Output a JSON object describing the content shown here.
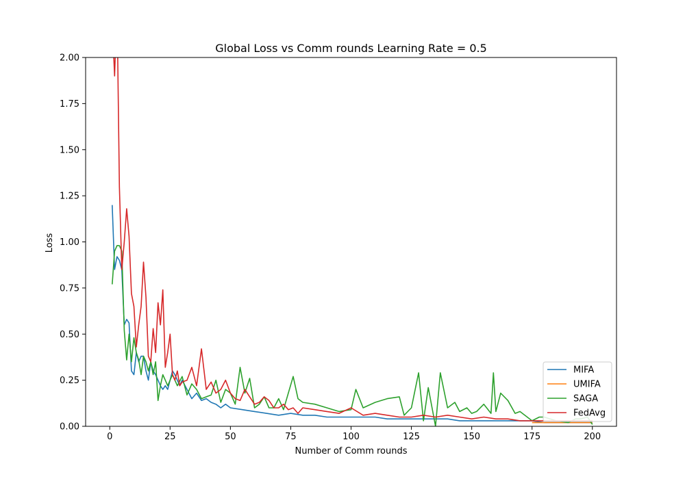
{
  "chart_data": {
    "type": "line",
    "title": "Global Loss vs Comm rounds Learning Rate = 0.5",
    "xlabel": "Number of Comm rounds",
    "ylabel": "Loss",
    "xlim": [
      -10,
      210
    ],
    "ylim": [
      0,
      2.0
    ],
    "xticks": [
      0,
      25,
      50,
      75,
      100,
      125,
      150,
      175,
      200
    ],
    "xtick_labels": [
      "0",
      "25",
      "50",
      "75",
      "100",
      "125",
      "150",
      "175",
      "200"
    ],
    "yticks": [
      0,
      0.25,
      0.5,
      0.75,
      1.0,
      1.25,
      1.5,
      1.75,
      2.0
    ],
    "ytick_labels": [
      "0.00",
      "0.25",
      "0.50",
      "0.75",
      "1.00",
      "1.25",
      "1.50",
      "1.75",
      "2.00"
    ],
    "legend_position": "lower-right",
    "grid": false,
    "series": [
      {
        "name": "MIFA",
        "color": "#1f77b4",
        "x": [
          1,
          2,
          3,
          4,
          5,
          6,
          7,
          8,
          9,
          10,
          11,
          12,
          13,
          14,
          15,
          16,
          17,
          18,
          19,
          20,
          21,
          22,
          23,
          24,
          25,
          26,
          27,
          28,
          29,
          30,
          32,
          34,
          36,
          38,
          40,
          42,
          44,
          46,
          48,
          50,
          55,
          60,
          65,
          70,
          75,
          80,
          85,
          90,
          95,
          100,
          105,
          110,
          115,
          120,
          125,
          130,
          135,
          140,
          145,
          150,
          155,
          160,
          165,
          170,
          175,
          180,
          185,
          190,
          195,
          200
        ],
        "y": [
          1.2,
          0.85,
          0.92,
          0.9,
          0.85,
          0.55,
          0.58,
          0.56,
          0.3,
          0.28,
          0.4,
          0.35,
          0.38,
          0.38,
          0.3,
          0.25,
          0.35,
          0.3,
          0.28,
          0.25,
          0.22,
          0.2,
          0.22,
          0.2,
          0.25,
          0.3,
          0.28,
          0.25,
          0.22,
          0.25,
          0.2,
          0.15,
          0.18,
          0.14,
          0.15,
          0.13,
          0.12,
          0.1,
          0.12,
          0.1,
          0.09,
          0.08,
          0.07,
          0.06,
          0.07,
          0.06,
          0.06,
          0.05,
          0.05,
          0.05,
          0.05,
          0.05,
          0.04,
          0.04,
          0.04,
          0.04,
          0.04,
          0.04,
          0.03,
          0.03,
          0.03,
          0.03,
          0.03,
          0.03,
          0.03,
          0.02,
          0.02,
          0.02,
          0.02,
          0.02
        ]
      },
      {
        "name": "UMIFA",
        "color": "#ff7f0e",
        "x": [
          175,
          180,
          185,
          190,
          195,
          200
        ],
        "y": [
          0.02,
          0.02,
          0.02,
          0.02,
          0.02,
          0.02
        ]
      },
      {
        "name": "SAGA",
        "color": "#2ca02c",
        "x": [
          1,
          2,
          3,
          4,
          5,
          6,
          7,
          8,
          9,
          10,
          11,
          12,
          13,
          14,
          15,
          16,
          17,
          18,
          19,
          20,
          21,
          22,
          23,
          24,
          25,
          26,
          28,
          30,
          32,
          34,
          36,
          38,
          40,
          42,
          44,
          46,
          48,
          50,
          52,
          54,
          56,
          58,
          60,
          62,
          64,
          66,
          68,
          70,
          72,
          74,
          76,
          78,
          80,
          85,
          90,
          95,
          100,
          102,
          105,
          110,
          115,
          120,
          122,
          125,
          128,
          130,
          132,
          135,
          137,
          140,
          143,
          145,
          148,
          150,
          152,
          155,
          158,
          159,
          160,
          162,
          165,
          168,
          170,
          172,
          175,
          178,
          180,
          185,
          190,
          193,
          195,
          198,
          200
        ],
        "y": [
          0.77,
          0.95,
          0.98,
          0.98,
          0.95,
          0.52,
          0.36,
          0.5,
          0.35,
          0.48,
          0.4,
          0.36,
          0.28,
          0.38,
          0.35,
          0.3,
          0.35,
          0.28,
          0.35,
          0.14,
          0.22,
          0.28,
          0.25,
          0.22,
          0.25,
          0.28,
          0.22,
          0.27,
          0.17,
          0.23,
          0.2,
          0.15,
          0.16,
          0.17,
          0.25,
          0.13,
          0.2,
          0.18,
          0.12,
          0.32,
          0.18,
          0.26,
          0.1,
          0.12,
          0.16,
          0.1,
          0.1,
          0.15,
          0.09,
          0.18,
          0.27,
          0.15,
          0.13,
          0.12,
          0.1,
          0.08,
          0.09,
          0.2,
          0.1,
          0.13,
          0.15,
          0.16,
          0.06,
          0.1,
          0.29,
          0.03,
          0.21,
          0.0,
          0.29,
          0.1,
          0.13,
          0.08,
          0.1,
          0.07,
          0.08,
          0.12,
          0.07,
          0.29,
          0.08,
          0.18,
          0.14,
          0.07,
          0.08,
          0.06,
          0.03,
          0.05,
          0.05,
          0.03,
          0.02,
          0.04,
          0.04,
          0.05,
          0.01
        ]
      },
      {
        "name": "FedAvg",
        "color": "#d62728",
        "x": [
          1,
          2,
          3,
          4,
          5,
          6,
          7,
          8,
          9,
          10,
          11,
          12,
          13,
          14,
          15,
          16,
          17,
          18,
          19,
          20,
          21,
          22,
          23,
          24,
          25,
          26,
          27,
          28,
          29,
          30,
          32,
          34,
          36,
          38,
          40,
          42,
          44,
          46,
          48,
          50,
          52,
          54,
          56,
          58,
          60,
          62,
          64,
          66,
          68,
          70,
          72,
          74,
          76,
          78,
          80,
          85,
          90,
          95,
          100,
          105,
          110,
          115,
          120,
          125,
          130,
          135,
          140,
          145,
          150,
          155,
          160,
          165,
          170,
          175,
          180,
          185,
          190,
          195,
          200
        ],
        "y": [
          2.2,
          1.9,
          2.3,
          1.3,
          0.85,
          1.0,
          1.18,
          1.03,
          0.72,
          0.65,
          0.43,
          0.55,
          0.65,
          0.89,
          0.7,
          0.38,
          0.35,
          0.53,
          0.4,
          0.67,
          0.55,
          0.74,
          0.32,
          0.4,
          0.5,
          0.28,
          0.25,
          0.3,
          0.22,
          0.24,
          0.25,
          0.32,
          0.22,
          0.42,
          0.2,
          0.24,
          0.18,
          0.2,
          0.25,
          0.18,
          0.15,
          0.14,
          0.2,
          0.16,
          0.12,
          0.13,
          0.16,
          0.14,
          0.1,
          0.1,
          0.12,
          0.09,
          0.1,
          0.07,
          0.1,
          0.09,
          0.08,
          0.07,
          0.1,
          0.06,
          0.07,
          0.06,
          0.05,
          0.05,
          0.06,
          0.05,
          0.06,
          0.05,
          0.04,
          0.05,
          0.04,
          0.04,
          0.03,
          0.03,
          0.03,
          0.03,
          0.03,
          0.03,
          0.03
        ]
      }
    ]
  }
}
